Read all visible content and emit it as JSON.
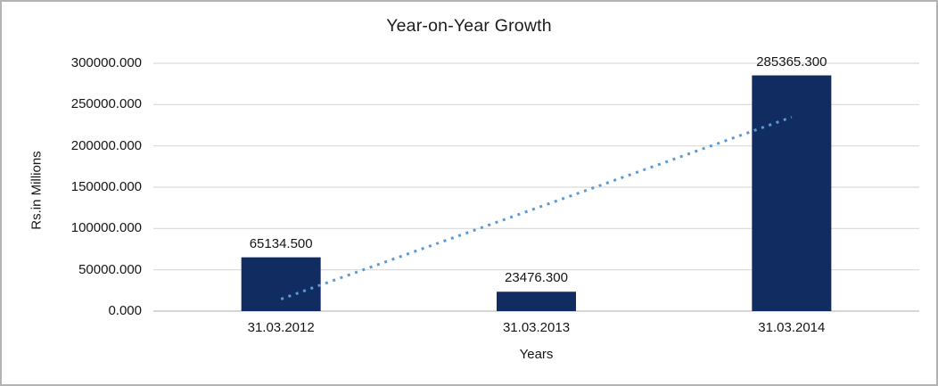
{
  "chart_data": {
    "type": "bar",
    "title": "Year-on-Year Growth",
    "xlabel": "Years",
    "ylabel": "Rs.in Millions",
    "categories": [
      "31.03.2012",
      "31.03.2013",
      "31.03.2014"
    ],
    "values": [
      65134.5,
      23476.3,
      285365.3
    ],
    "value_labels": [
      "65134.500",
      "23476.300",
      "285365.300"
    ],
    "y_ticks": [
      {
        "value": 0,
        "label": "0.000"
      },
      {
        "value": 50000,
        "label": "50000.000"
      },
      {
        "value": 100000,
        "label": "100000.000"
      },
      {
        "value": 150000,
        "label": "150000.000"
      },
      {
        "value": 200000,
        "label": "200000.000"
      },
      {
        "value": 250000,
        "label": "250000.000"
      },
      {
        "value": 300000,
        "label": "300000.000"
      }
    ],
    "ylim": [
      0,
      300000
    ],
    "grid": true,
    "legend": "none",
    "trendline": {
      "type": "linear",
      "style": "dotted"
    },
    "colors": {
      "bar": "#102c61",
      "trendline": "#5b9bd5",
      "gridline": "#d9d9d9",
      "axis_line": "#c9c9c9",
      "text": "#161616",
      "border": "#b3b3b3"
    }
  }
}
